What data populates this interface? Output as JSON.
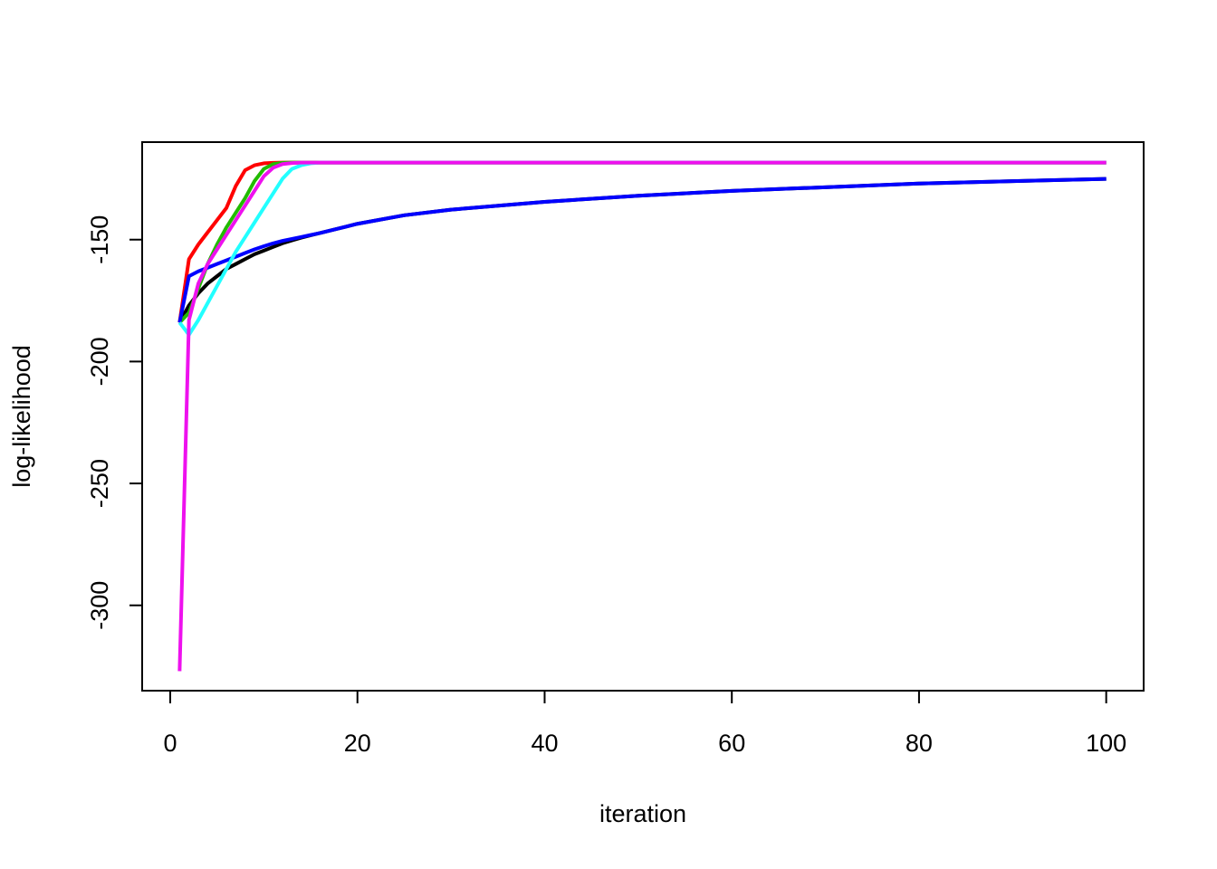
{
  "chart_data": {
    "type": "line",
    "x_label": "iteration",
    "y_label": "log-likelihood",
    "x": [
      1,
      2,
      3,
      4,
      5,
      6,
      7,
      8,
      9,
      10,
      11,
      12,
      13,
      14,
      15,
      16,
      20,
      25,
      30,
      40,
      50,
      60,
      70,
      80,
      90,
      100
    ],
    "series": [
      {
        "color": "#000000",
        "values": [
          -184,
          -177,
          -172,
          -168,
          -165,
          -162,
          -160,
          -158,
          -156,
          -154.5,
          -153,
          -151.5,
          -150.3,
          -149.2,
          -148.2,
          -147.3,
          -143.5,
          -140,
          -137.7,
          -134.5,
          -132,
          -130,
          -128.5,
          -127,
          -126,
          -125.1
        ]
      },
      {
        "color": "#ff0000",
        "values": [
          -184,
          -158,
          -152,
          -147,
          -142,
          -137,
          -128,
          -121.5,
          -119.5,
          -118.7,
          -118.5,
          -118.4,
          -118.4,
          -118.4,
          -118.4,
          -118.4,
          -118.4,
          -118.4,
          -118.4,
          -118.4,
          -118.4,
          -118.4,
          -118.4,
          -118.4,
          -118.4,
          -118.4
        ]
      },
      {
        "color": "#22bb00",
        "values": [
          -184,
          -180,
          -170,
          -160,
          -152,
          -145,
          -139,
          -133,
          -126,
          -121,
          -119,
          -118.5,
          -118.4,
          -118.4,
          -118.4,
          -118.4,
          -118.4,
          -118.4,
          -118.4,
          -118.4,
          -118.4,
          -118.4,
          -118.4,
          -118.4,
          -118.4,
          -118.4
        ]
      },
      {
        "color": "#0000ff",
        "values": [
          -184,
          -165,
          -163,
          -161.5,
          -160,
          -158.5,
          -157,
          -155.5,
          -154,
          -152.7,
          -151.5,
          -150.5,
          -149.7,
          -148.9,
          -148.1,
          -147.3,
          -143.5,
          -140,
          -137.7,
          -134.5,
          -132,
          -130,
          -128.5,
          -127,
          -126,
          -125.1
        ]
      },
      {
        "color": "#22ffff",
        "values": [
          -184,
          -189,
          -183,
          -176,
          -169,
          -162,
          -155,
          -149,
          -143,
          -137,
          -131,
          -125,
          -121,
          -119.5,
          -118.7,
          -118.4,
          -118.4,
          -118.4,
          -118.4,
          -118.4,
          -118.4,
          -118.4,
          -118.4,
          -118.4,
          -118.4,
          -118.4
        ]
      },
      {
        "color": "#ee11ee",
        "values": [
          -327,
          -183,
          -168,
          -160,
          -154,
          -148,
          -142,
          -136,
          -130,
          -124,
          -120.5,
          -119,
          -118.6,
          -118.4,
          -118.4,
          -118.4,
          -118.4,
          -118.4,
          -118.4,
          -118.4,
          -118.4,
          -118.4,
          -118.4,
          -118.4,
          -118.4,
          -118.4
        ]
      }
    ],
    "xlim": [
      -3,
      104
    ],
    "xticks": [
      0,
      20,
      40,
      60,
      80,
      100
    ],
    "ylim": [
      -335,
      -110
    ],
    "yticks": [
      -300,
      -250,
      -200,
      -150
    ]
  }
}
